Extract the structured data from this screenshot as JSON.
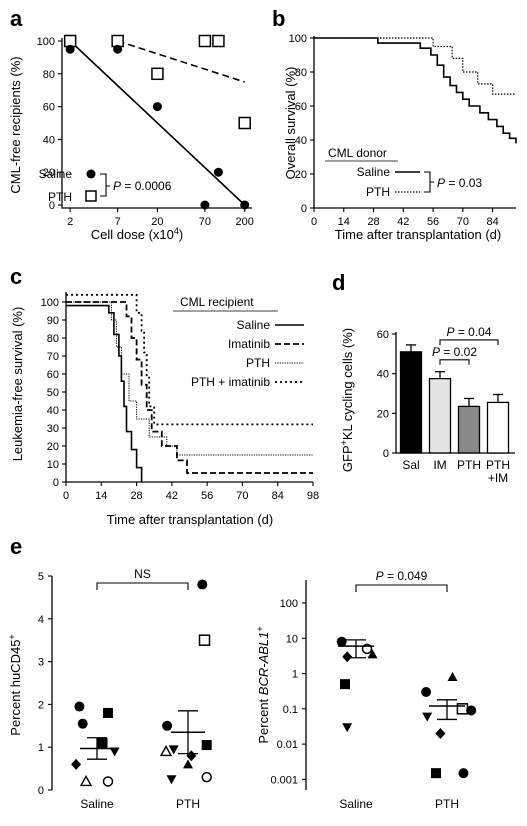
{
  "chart_data": [
    {
      "panel": "a",
      "type": "scatter",
      "xlabel": "Cell dose (x10",
      "xlabel_sup": "4",
      "xlabel_end": ")",
      "ylabel": "CML-free recipients (%)",
      "ylim": [
        0,
        100
      ],
      "xscale": "log",
      "xticks": [
        "2",
        "7",
        "20",
        "70",
        "200"
      ],
      "yticks": [
        "0",
        "20",
        "40",
        "60",
        "80",
        "100"
      ],
      "series": [
        {
          "name": "Saline",
          "marker": "filled-circle",
          "line": "solid",
          "points": [
            [
              2,
              95
            ],
            [
              7,
              95
            ],
            [
              20,
              60
            ],
            [
              70,
              0
            ],
            [
              100,
              20
            ],
            [
              200,
              0
            ]
          ],
          "fit": [
            [
              2,
              100
            ],
            [
              200,
              0
            ]
          ]
        },
        {
          "name": "PTH",
          "marker": "open-square",
          "line": "dashed",
          "points": [
            [
              2,
              100
            ],
            [
              7,
              100
            ],
            [
              20,
              80
            ],
            [
              70,
              100
            ],
            [
              100,
              100
            ],
            [
              200,
              50
            ]
          ],
          "fit": [
            [
              7,
              100
            ],
            [
              200,
              75
            ]
          ]
        }
      ],
      "p_label": "P",
      "p_value": "= 0.0006"
    },
    {
      "panel": "b",
      "type": "line",
      "xlabel": "Time after transplantation (d)",
      "ylabel": "Overall survival (%)",
      "xlim": [
        0,
        95
      ],
      "ylim": [
        0,
        100
      ],
      "xticks": [
        "0",
        "14",
        "28",
        "42",
        "56",
        "70",
        "84"
      ],
      "yticks": [
        "0",
        "20",
        "40",
        "60",
        "80",
        "100"
      ],
      "legend_title": "CML donor",
      "series": [
        {
          "name": "Saline",
          "style": "solid",
          "points": [
            [
              0,
              100
            ],
            [
              30,
              100
            ],
            [
              30,
              97
            ],
            [
              50,
              97
            ],
            [
              50,
              94
            ],
            [
              55,
              94
            ],
            [
              55,
              90
            ],
            [
              58,
              90
            ],
            [
              58,
              84
            ],
            [
              61,
              84
            ],
            [
              61,
              77
            ],
            [
              64,
              77
            ],
            [
              64,
              72
            ],
            [
              67,
              72
            ],
            [
              67,
              68
            ],
            [
              70,
              68
            ],
            [
              70,
              64
            ],
            [
              73,
              64
            ],
            [
              73,
              60
            ],
            [
              78,
              60
            ],
            [
              78,
              56
            ],
            [
              82,
              56
            ],
            [
              82,
              52
            ],
            [
              86,
              52
            ],
            [
              86,
              48
            ],
            [
              89,
              48
            ],
            [
              89,
              44
            ],
            [
              92,
              44
            ],
            [
              92,
              41
            ],
            [
              95,
              41
            ],
            [
              95,
              38
            ]
          ]
        },
        {
          "name": "PTH",
          "style": "dotted",
          "points": [
            [
              0,
              100
            ],
            [
              56,
              100
            ],
            [
              56,
              95
            ],
            [
              65,
              95
            ],
            [
              65,
              88
            ],
            [
              70,
              88
            ],
            [
              70,
              80
            ],
            [
              77,
              80
            ],
            [
              77,
              73
            ],
            [
              84,
              73
            ],
            [
              84,
              67
            ],
            [
              95,
              67
            ]
          ]
        }
      ],
      "p_label": "P",
      "p_value": "= 0.03"
    },
    {
      "panel": "c",
      "type": "line",
      "xlabel": "Time after transplantation (d)",
      "ylabel": "Leukemia-free survival (%)",
      "xlim": [
        0,
        98
      ],
      "ylim": [
        0,
        100
      ],
      "xticks": [
        "0",
        "14",
        "28",
        "42",
        "56",
        "70",
        "84",
        "98"
      ],
      "yticks": [
        "0",
        "10",
        "20",
        "30",
        "40",
        "50",
        "60",
        "70",
        "80",
        "90",
        "100"
      ],
      "legend_title": "CML recipient",
      "series": [
        {
          "name": "Saline",
          "style": "solid",
          "points": [
            [
              0,
              98
            ],
            [
              17,
              98
            ],
            [
              17,
              94
            ],
            [
              19,
              94
            ],
            [
              19,
              82
            ],
            [
              21,
              82
            ],
            [
              21,
              70
            ],
            [
              22,
              70
            ],
            [
              22,
              56
            ],
            [
              23,
              56
            ],
            [
              23,
              42
            ],
            [
              24,
              42
            ],
            [
              24,
              28
            ],
            [
              26,
              28
            ],
            [
              26,
              18
            ],
            [
              28,
              18
            ],
            [
              28,
              8
            ],
            [
              30,
              8
            ],
            [
              30,
              0
            ]
          ]
        },
        {
          "name": "Imatinib",
          "style": "dashed",
          "points": [
            [
              0,
              100
            ],
            [
              24,
              100
            ],
            [
              24,
              92
            ],
            [
              26,
              92
            ],
            [
              26,
              80
            ],
            [
              28,
              80
            ],
            [
              28,
              68
            ],
            [
              30,
              68
            ],
            [
              30,
              54
            ],
            [
              32,
              54
            ],
            [
              32,
              40
            ],
            [
              34,
              40
            ],
            [
              34,
              28
            ],
            [
              38,
              28
            ],
            [
              38,
              20
            ],
            [
              44,
              20
            ],
            [
              44,
              12
            ],
            [
              48,
              12
            ],
            [
              48,
              5
            ],
            [
              98,
              5
            ]
          ]
        },
        {
          "name": "PTH",
          "style": "dotted-fine",
          "points": [
            [
              0,
              100
            ],
            [
              18,
              100
            ],
            [
              18,
              90
            ],
            [
              20,
              90
            ],
            [
              20,
              75
            ],
            [
              22,
              75
            ],
            [
              22,
              60
            ],
            [
              25,
              60
            ],
            [
              25,
              45
            ],
            [
              28,
              45
            ],
            [
              28,
              35
            ],
            [
              33,
              35
            ],
            [
              33,
              25
            ],
            [
              40,
              25
            ],
            [
              40,
              20
            ],
            [
              44,
              20
            ],
            [
              44,
              15
            ],
            [
              98,
              15
            ]
          ]
        },
        {
          "name": "PTH + imatinib",
          "style": "dotted-coarse",
          "points": [
            [
              0,
              104
            ],
            [
              28,
              104
            ],
            [
              28,
              94
            ],
            [
              30,
              94
            ],
            [
              30,
              84
            ],
            [
              31,
              84
            ],
            [
              31,
              72
            ],
            [
              32,
              72
            ],
            [
              32,
              58
            ],
            [
              33,
              58
            ],
            [
              33,
              42
            ],
            [
              35,
              42
            ],
            [
              35,
              32
            ],
            [
              98,
              32
            ]
          ]
        }
      ]
    },
    {
      "panel": "d",
      "type": "bar",
      "ylabel_pre": "GFP",
      "ylabel_sup": "+",
      "ylabel_post": "KL cycling cells (%)",
      "ylim": [
        0,
        60
      ],
      "yticks": [
        "0",
        "20",
        "40",
        "60"
      ],
      "categories": [
        "Sal",
        "IM",
        "PTH",
        "PTH +IM"
      ],
      "category_lines": [
        [
          "Sal"
        ],
        [
          "IM"
        ],
        [
          "PTH"
        ],
        [
          "PTH",
          "+IM"
        ]
      ],
      "values": [
        51,
        37.5,
        23.5,
        25.5
      ],
      "errors": [
        3.5,
        3.5,
        4,
        4
      ],
      "colors": [
        "#000000",
        "#e4e4e4",
        "#8a8a8a",
        "#ffffff"
      ],
      "comparisons": [
        {
          "from": 1,
          "to": 2,
          "label": "P",
          "value": "= 0.02",
          "y": 47
        },
        {
          "from": 1,
          "to": 3,
          "label": "P",
          "value": "= 0.04",
          "y": 57
        }
      ]
    },
    {
      "panel": "e-left",
      "type": "scatter",
      "ylabel_pre": "Percent huCD45",
      "ylabel_sup": "+",
      "ylim": [
        0,
        5
      ],
      "yticks": [
        "0",
        "1",
        "2",
        "3",
        "4",
        "5"
      ],
      "categories": [
        "Saline",
        "PTH"
      ],
      "means": [
        0.97,
        1.35
      ],
      "sem": [
        0.25,
        0.5
      ],
      "points": [
        {
          "g": 0,
          "y": 1.95,
          "m": "circle",
          "dx": -0.16
        },
        {
          "g": 0,
          "y": 1.8,
          "m": "square",
          "dx": 0.1
        },
        {
          "g": 0,
          "y": 1.55,
          "m": "circle",
          "dx": -0.13
        },
        {
          "g": 0,
          "y": 1.1,
          "m": "square",
          "dx": 0.05
        },
        {
          "g": 0,
          "y": 0.9,
          "m": "tri-down",
          "dx": 0.16
        },
        {
          "g": 0,
          "y": 0.6,
          "m": "diamond",
          "dx": -0.19
        },
        {
          "g": 0,
          "y": 0.2,
          "m": "open-circle",
          "dx": 0.1
        },
        {
          "g": 0,
          "y": 0.2,
          "m": "open-tri",
          "dx": -0.1
        },
        {
          "g": 1,
          "y": 4.8,
          "m": "circle",
          "dx": 0.13
        },
        {
          "g": 1,
          "y": 3.5,
          "m": "open-square",
          "dx": 0.15
        },
        {
          "g": 1,
          "y": 1.5,
          "m": "circle",
          "dx": -0.19
        },
        {
          "g": 1,
          "y": 1.05,
          "m": "square",
          "dx": 0.17
        },
        {
          "g": 1,
          "y": 0.95,
          "m": "tri-down",
          "dx": -0.13
        },
        {
          "g": 1,
          "y": 0.8,
          "m": "diamond",
          "dx": 0.03
        },
        {
          "g": 1,
          "y": 0.6,
          "m": "tri-up",
          "dx": 0.0
        },
        {
          "g": 1,
          "y": 0.3,
          "m": "open-circle",
          "dx": 0.17
        },
        {
          "g": 1,
          "y": 0.25,
          "m": "tri-down",
          "dx": -0.15
        },
        {
          "g": 1,
          "y": 0.9,
          "m": "open-tri",
          "dx": -0.2
        }
      ],
      "sig_label": "NS"
    },
    {
      "panel": "e-right",
      "type": "scatter",
      "ylabel_pre": "Percent",
      "ylabel_ital": "BCR-ABL1",
      "ylabel_sup": "+",
      "yscale": "log",
      "ylim": [
        0.0005,
        100
      ],
      "yticks": [
        "0.001",
        "0.01",
        "0.1",
        "1",
        "10",
        "100"
      ],
      "categories": [
        "Saline",
        "PTH"
      ],
      "means": [
        6,
        0.12
      ],
      "sem_hi": [
        9,
        0.18
      ],
      "sem_lo": [
        2.8,
        0.05
      ],
      "points": [
        {
          "g": 0,
          "y": 8,
          "m": "circle",
          "dx": -0.13
        },
        {
          "g": 0,
          "y": 5,
          "m": "open-circle",
          "dx": 0.1
        },
        {
          "g": 0,
          "y": 3.5,
          "m": "tri-up",
          "dx": 0.15
        },
        {
          "g": 0,
          "y": 3,
          "m": "diamond",
          "dx": -0.08
        },
        {
          "g": 0,
          "y": 0.5,
          "m": "square",
          "dx": -0.1
        },
        {
          "g": 0,
          "y": 0.03,
          "m": "tri-down",
          "dx": -0.08
        },
        {
          "g": 1,
          "y": 0.8,
          "m": "tri-up",
          "dx": 0.05
        },
        {
          "g": 1,
          "y": 0.3,
          "m": "circle",
          "dx": -0.19
        },
        {
          "g": 1,
          "y": 0.1,
          "m": "open-square",
          "dx": 0.14
        },
        {
          "g": 1,
          "y": 0.09,
          "m": "circle",
          "dx": 0.22
        },
        {
          "g": 1,
          "y": 0.06,
          "m": "tri-down",
          "dx": -0.18
        },
        {
          "g": 1,
          "y": 0.02,
          "m": "diamond",
          "dx": -0.06
        },
        {
          "g": 1,
          "y": 0.0015,
          "m": "square",
          "dx": -0.1
        },
        {
          "g": 1,
          "y": 0.0015,
          "m": "circle",
          "dx": 0.15
        }
      ],
      "p_label": "P",
      "p_value": "= 0.049"
    }
  ],
  "panel_letters": [
    "a",
    "b",
    "c",
    "d",
    "e"
  ]
}
